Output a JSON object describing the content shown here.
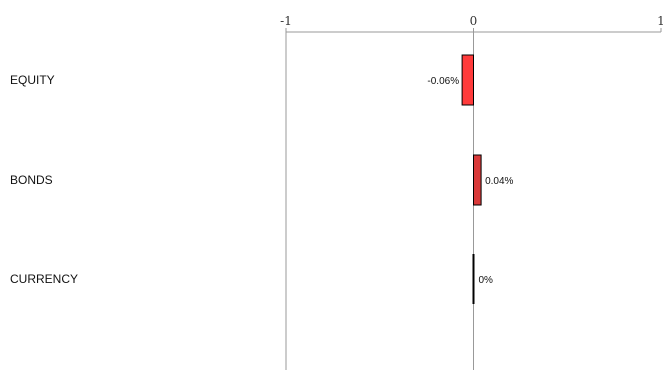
{
  "chart_data": {
    "type": "bar",
    "orientation": "horizontal",
    "categories": [
      "EQUITY",
      "BONDS",
      "CURRENCY"
    ],
    "values": [
      -0.06,
      0.04,
      0
    ],
    "value_labels": [
      "-0.06%",
      "0.04%",
      "0%"
    ],
    "xlim": [
      -1,
      1
    ],
    "x_ticks": [
      -1,
      0,
      1
    ],
    "x_tick_labels": [
      "-1",
      "0",
      "1"
    ],
    "title": "",
    "xlabel": "",
    "ylabel": "",
    "grid": false,
    "axis_position": "top",
    "colors": {
      "negative": "#ff3b3b",
      "positive": "#d93a3a",
      "zero": "#000000",
      "bar_stroke": "#000000",
      "frame": "#999999"
    }
  }
}
